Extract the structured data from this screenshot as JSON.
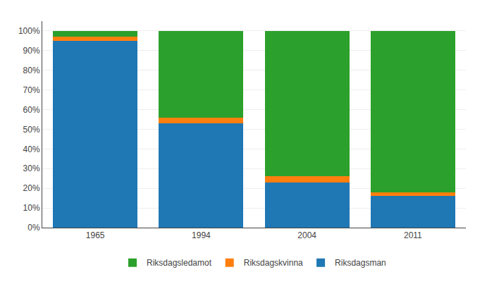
{
  "chart_data": {
    "type": "bar",
    "stacked": true,
    "categories": [
      "1965",
      "1994",
      "2004",
      "2011"
    ],
    "series": [
      {
        "name": "Riksdagsman",
        "values": [
          95,
          53,
          23,
          16
        ]
      },
      {
        "name": "Riksdagskvinna",
        "values": [
          2,
          3,
          3,
          2
        ]
      },
      {
        "name": "Riksdagsledamot",
        "values": [
          3,
          44,
          74,
          82
        ]
      }
    ],
    "ylim": [
      0,
      105
    ],
    "yticks": [
      {
        "value": 0,
        "label": "0%"
      },
      {
        "value": 10,
        "label": "10%"
      },
      {
        "value": 20,
        "label": "20%"
      },
      {
        "value": 30,
        "label": "30%"
      },
      {
        "value": 40,
        "label": "40%"
      },
      {
        "value": 50,
        "label": "50%"
      },
      {
        "value": 60,
        "label": "60%"
      },
      {
        "value": 70,
        "label": "70%"
      },
      {
        "value": 80,
        "label": "80%"
      },
      {
        "value": 90,
        "label": "90%"
      },
      {
        "value": 100,
        "label": "100%"
      }
    ],
    "grid": true,
    "legend": "bottom"
  }
}
